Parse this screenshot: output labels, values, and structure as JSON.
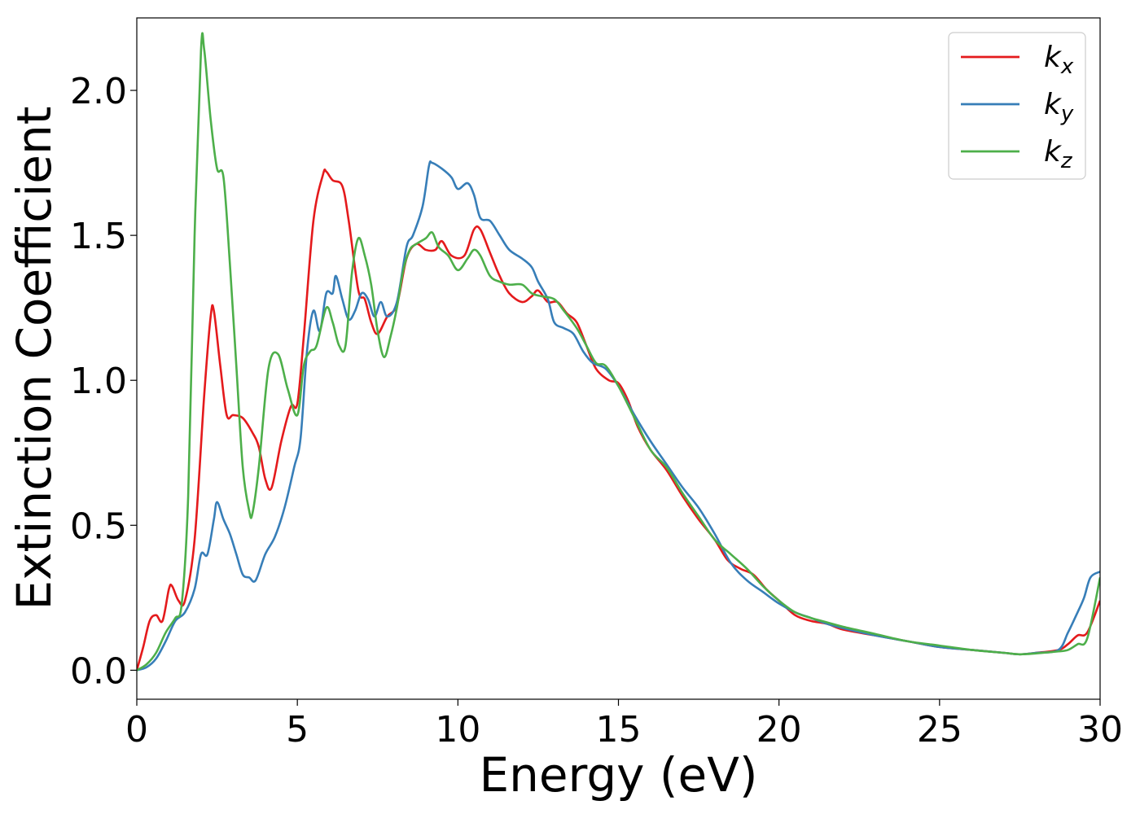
{
  "chart_data": {
    "type": "line",
    "xlabel": "Energy (eV)",
    "ylabel": "Extinction Coefficient",
    "xlim": [
      0,
      30
    ],
    "ylim": [
      -0.1,
      2.25
    ],
    "xticks": [
      0,
      5,
      10,
      15,
      20,
      25,
      30
    ],
    "xtick_labels": [
      "0",
      "5",
      "10",
      "15",
      "20",
      "25",
      "30"
    ],
    "yticks": [
      0.0,
      0.5,
      1.0,
      1.5,
      2.0
    ],
    "ytick_labels": [
      "0.0",
      "0.5",
      "1.0",
      "1.5",
      "2.0"
    ],
    "grid": false,
    "legend_position": "top-right",
    "series": [
      {
        "name": "k",
        "sub": "x",
        "color": "#e41a1c",
        "points": [
          [
            0,
            0.0
          ],
          [
            0.2,
            0.08
          ],
          [
            0.4,
            0.17
          ],
          [
            0.6,
            0.19
          ],
          [
            0.8,
            0.17
          ],
          [
            1.0,
            0.28
          ],
          [
            1.1,
            0.29
          ],
          [
            1.3,
            0.24
          ],
          [
            1.5,
            0.24
          ],
          [
            1.8,
            0.45
          ],
          [
            2.1,
            0.95
          ],
          [
            2.3,
            1.22
          ],
          [
            2.4,
            1.24
          ],
          [
            2.6,
            1.05
          ],
          [
            2.8,
            0.88
          ],
          [
            3.0,
            0.88
          ],
          [
            3.3,
            0.87
          ],
          [
            3.6,
            0.82
          ],
          [
            3.8,
            0.77
          ],
          [
            4.0,
            0.66
          ],
          [
            4.2,
            0.63
          ],
          [
            4.5,
            0.79
          ],
          [
            4.8,
            0.91
          ],
          [
            5.0,
            0.92
          ],
          [
            5.2,
            1.15
          ],
          [
            5.5,
            1.55
          ],
          [
            5.8,
            1.71
          ],
          [
            5.9,
            1.72
          ],
          [
            6.1,
            1.69
          ],
          [
            6.4,
            1.67
          ],
          [
            6.6,
            1.55
          ],
          [
            6.9,
            1.31
          ],
          [
            7.1,
            1.28
          ],
          [
            7.3,
            1.2
          ],
          [
            7.5,
            1.16
          ],
          [
            7.8,
            1.22
          ],
          [
            8.1,
            1.26
          ],
          [
            8.4,
            1.42
          ],
          [
            8.7,
            1.47
          ],
          [
            9.0,
            1.45
          ],
          [
            9.3,
            1.45
          ],
          [
            9.5,
            1.48
          ],
          [
            9.8,
            1.43
          ],
          [
            10.2,
            1.43
          ],
          [
            10.5,
            1.52
          ],
          [
            10.7,
            1.52
          ],
          [
            11.0,
            1.44
          ],
          [
            11.3,
            1.36
          ],
          [
            11.6,
            1.3
          ],
          [
            12.0,
            1.27
          ],
          [
            12.3,
            1.29
          ],
          [
            12.5,
            1.31
          ],
          [
            12.8,
            1.27
          ],
          [
            13.1,
            1.27
          ],
          [
            13.4,
            1.23
          ],
          [
            13.7,
            1.2
          ],
          [
            14.0,
            1.12
          ],
          [
            14.3,
            1.04
          ],
          [
            14.7,
            1.0
          ],
          [
            15.0,
            0.99
          ],
          [
            15.3,
            0.93
          ],
          [
            15.6,
            0.84
          ],
          [
            16.0,
            0.76
          ],
          [
            16.5,
            0.69
          ],
          [
            17.0,
            0.6
          ],
          [
            17.5,
            0.52
          ],
          [
            18.0,
            0.45
          ],
          [
            18.4,
            0.38
          ],
          [
            18.8,
            0.35
          ],
          [
            19.2,
            0.33
          ],
          [
            19.6,
            0.28
          ],
          [
            20.0,
            0.24
          ],
          [
            20.5,
            0.19
          ],
          [
            21.0,
            0.17
          ],
          [
            21.5,
            0.16
          ],
          [
            22.0,
            0.14
          ],
          [
            23.0,
            0.12
          ],
          [
            24.0,
            0.1
          ],
          [
            25.0,
            0.08
          ],
          [
            26.0,
            0.07
          ],
          [
            27.0,
            0.06
          ],
          [
            27.5,
            0.055
          ],
          [
            28.0,
            0.06
          ],
          [
            28.7,
            0.07
          ],
          [
            29.0,
            0.09
          ],
          [
            29.3,
            0.12
          ],
          [
            29.6,
            0.13
          ],
          [
            30.0,
            0.24
          ]
        ]
      },
      {
        "name": "k",
        "sub": "y",
        "color": "#377eb8",
        "points": [
          [
            0,
            0.0
          ],
          [
            0.3,
            0.01
          ],
          [
            0.6,
            0.04
          ],
          [
            0.9,
            0.1
          ],
          [
            1.2,
            0.17
          ],
          [
            1.5,
            0.2
          ],
          [
            1.8,
            0.28
          ],
          [
            2.0,
            0.4
          ],
          [
            2.2,
            0.4
          ],
          [
            2.4,
            0.52
          ],
          [
            2.5,
            0.58
          ],
          [
            2.7,
            0.52
          ],
          [
            2.9,
            0.47
          ],
          [
            3.1,
            0.4
          ],
          [
            3.3,
            0.33
          ],
          [
            3.5,
            0.32
          ],
          [
            3.7,
            0.31
          ],
          [
            4.0,
            0.4
          ],
          [
            4.3,
            0.46
          ],
          [
            4.6,
            0.56
          ],
          [
            4.9,
            0.7
          ],
          [
            5.1,
            0.8
          ],
          [
            5.3,
            1.1
          ],
          [
            5.5,
            1.24
          ],
          [
            5.7,
            1.17
          ],
          [
            5.9,
            1.3
          ],
          [
            6.1,
            1.3
          ],
          [
            6.2,
            1.36
          ],
          [
            6.4,
            1.28
          ],
          [
            6.6,
            1.21
          ],
          [
            6.8,
            1.24
          ],
          [
            7.0,
            1.3
          ],
          [
            7.2,
            1.28
          ],
          [
            7.4,
            1.22
          ],
          [
            7.6,
            1.27
          ],
          [
            7.8,
            1.22
          ],
          [
            8.1,
            1.27
          ],
          [
            8.4,
            1.46
          ],
          [
            8.6,
            1.5
          ],
          [
            8.9,
            1.6
          ],
          [
            9.1,
            1.74
          ],
          [
            9.2,
            1.75
          ],
          [
            9.5,
            1.73
          ],
          [
            9.8,
            1.7
          ],
          [
            10.0,
            1.66
          ],
          [
            10.3,
            1.68
          ],
          [
            10.5,
            1.64
          ],
          [
            10.7,
            1.56
          ],
          [
            11.0,
            1.55
          ],
          [
            11.3,
            1.5
          ],
          [
            11.6,
            1.45
          ],
          [
            12.0,
            1.42
          ],
          [
            12.3,
            1.39
          ],
          [
            12.5,
            1.34
          ],
          [
            12.8,
            1.28
          ],
          [
            13.0,
            1.2
          ],
          [
            13.3,
            1.18
          ],
          [
            13.6,
            1.16
          ],
          [
            13.9,
            1.1
          ],
          [
            14.2,
            1.06
          ],
          [
            14.6,
            1.04
          ],
          [
            15.0,
            0.98
          ],
          [
            15.5,
            0.88
          ],
          [
            16.0,
            0.79
          ],
          [
            16.5,
            0.71
          ],
          [
            17.0,
            0.63
          ],
          [
            17.5,
            0.56
          ],
          [
            18.0,
            0.47
          ],
          [
            18.5,
            0.37
          ],
          [
            19.0,
            0.31
          ],
          [
            19.5,
            0.27
          ],
          [
            20.0,
            0.23
          ],
          [
            20.5,
            0.2
          ],
          [
            21.0,
            0.18
          ],
          [
            21.5,
            0.16
          ],
          [
            22.0,
            0.145
          ],
          [
            23.0,
            0.12
          ],
          [
            24.0,
            0.1
          ],
          [
            25.0,
            0.08
          ],
          [
            26.0,
            0.07
          ],
          [
            27.0,
            0.06
          ],
          [
            27.5,
            0.055
          ],
          [
            28.0,
            0.06
          ],
          [
            28.7,
            0.07
          ],
          [
            29.0,
            0.13
          ],
          [
            29.3,
            0.2
          ],
          [
            29.5,
            0.25
          ],
          [
            29.7,
            0.32
          ],
          [
            30.0,
            0.34
          ]
        ]
      },
      {
        "name": "k",
        "sub": "z",
        "color": "#4daf4a",
        "points": [
          [
            0,
            0.0
          ],
          [
            0.3,
            0.02
          ],
          [
            0.6,
            0.06
          ],
          [
            0.9,
            0.13
          ],
          [
            1.2,
            0.18
          ],
          [
            1.4,
            0.23
          ],
          [
            1.6,
            0.6
          ],
          [
            1.8,
            1.5
          ],
          [
            2.0,
            2.14
          ],
          [
            2.1,
            2.14
          ],
          [
            2.3,
            1.9
          ],
          [
            2.5,
            1.73
          ],
          [
            2.7,
            1.7
          ],
          [
            2.9,
            1.4
          ],
          [
            3.1,
            1.05
          ],
          [
            3.3,
            0.7
          ],
          [
            3.5,
            0.55
          ],
          [
            3.6,
            0.54
          ],
          [
            3.8,
            0.7
          ],
          [
            4.1,
            1.04
          ],
          [
            4.4,
            1.09
          ],
          [
            4.7,
            0.97
          ],
          [
            5.0,
            0.88
          ],
          [
            5.2,
            1.05
          ],
          [
            5.4,
            1.1
          ],
          [
            5.6,
            1.12
          ],
          [
            5.9,
            1.25
          ],
          [
            6.1,
            1.2
          ],
          [
            6.3,
            1.12
          ],
          [
            6.5,
            1.12
          ],
          [
            6.7,
            1.37
          ],
          [
            6.9,
            1.49
          ],
          [
            7.1,
            1.43
          ],
          [
            7.3,
            1.33
          ],
          [
            7.5,
            1.17
          ],
          [
            7.7,
            1.08
          ],
          [
            7.9,
            1.15
          ],
          [
            8.1,
            1.25
          ],
          [
            8.3,
            1.38
          ],
          [
            8.5,
            1.45
          ],
          [
            8.7,
            1.47
          ],
          [
            9.0,
            1.49
          ],
          [
            9.2,
            1.51
          ],
          [
            9.4,
            1.46
          ],
          [
            9.7,
            1.43
          ],
          [
            10.0,
            1.38
          ],
          [
            10.3,
            1.42
          ],
          [
            10.5,
            1.45
          ],
          [
            10.7,
            1.43
          ],
          [
            11.0,
            1.36
          ],
          [
            11.3,
            1.34
          ],
          [
            11.6,
            1.33
          ],
          [
            12.0,
            1.33
          ],
          [
            12.3,
            1.3
          ],
          [
            12.6,
            1.29
          ],
          [
            13.0,
            1.28
          ],
          [
            13.3,
            1.24
          ],
          [
            13.7,
            1.18
          ],
          [
            14.0,
            1.12
          ],
          [
            14.3,
            1.06
          ],
          [
            14.6,
            1.05
          ],
          [
            15.0,
            0.98
          ],
          [
            15.5,
            0.87
          ],
          [
            16.0,
            0.76
          ],
          [
            16.5,
            0.7
          ],
          [
            17.0,
            0.61
          ],
          [
            17.5,
            0.53
          ],
          [
            18.0,
            0.45
          ],
          [
            18.5,
            0.4
          ],
          [
            19.0,
            0.35
          ],
          [
            19.5,
            0.29
          ],
          [
            20.0,
            0.24
          ],
          [
            20.5,
            0.2
          ],
          [
            21.0,
            0.18
          ],
          [
            21.5,
            0.165
          ],
          [
            22.0,
            0.15
          ],
          [
            23.0,
            0.125
          ],
          [
            24.0,
            0.1
          ],
          [
            25.0,
            0.085
          ],
          [
            26.0,
            0.07
          ],
          [
            27.0,
            0.06
          ],
          [
            27.5,
            0.055
          ],
          [
            28.0,
            0.058
          ],
          [
            28.7,
            0.065
          ],
          [
            29.0,
            0.07
          ],
          [
            29.3,
            0.09
          ],
          [
            29.6,
            0.11
          ],
          [
            30.0,
            0.32
          ]
        ]
      }
    ]
  }
}
